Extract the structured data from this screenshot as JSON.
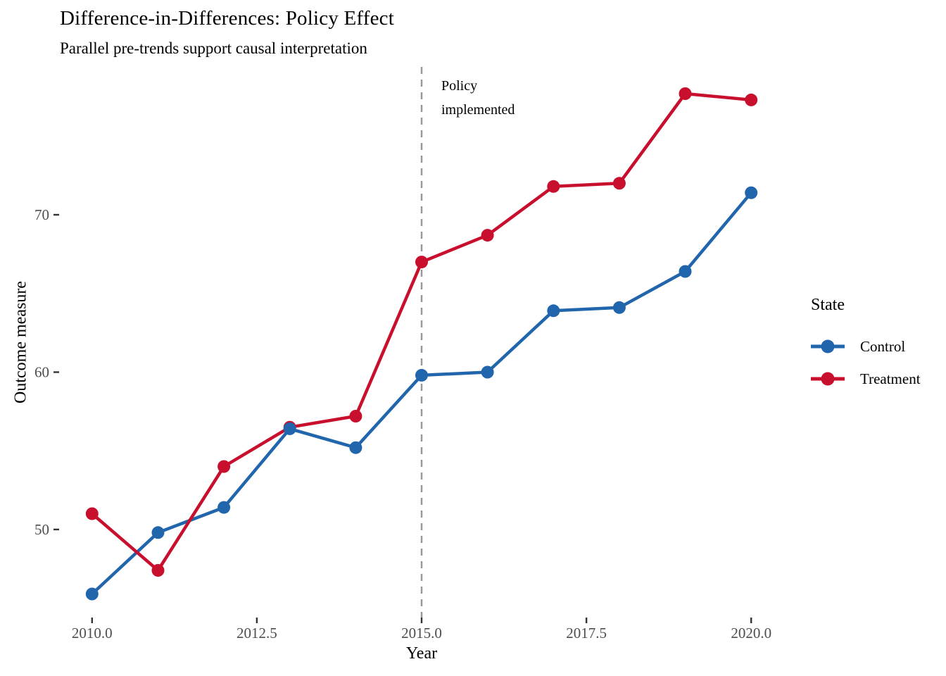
{
  "chart_data": {
    "type": "line",
    "title": "Difference-in-Differences: Policy Effect",
    "subtitle": "Parallel pre-trends support causal interpretation",
    "xlabel": "Year",
    "ylabel": "Outcome measure",
    "x": [
      2010,
      2011,
      2012,
      2013,
      2014,
      2015,
      2016,
      2017,
      2018,
      2019,
      2020
    ],
    "series": [
      {
        "name": "Control",
        "color": "#2166AC",
        "values": [
          45.9,
          49.8,
          51.4,
          56.4,
          55.2,
          59.8,
          60.0,
          63.9,
          64.1,
          66.4,
          71.4
        ]
      },
      {
        "name": "Treatment",
        "color": "#C8102E",
        "values": [
          51.0,
          47.4,
          54.0,
          56.5,
          57.2,
          67.0,
          68.7,
          71.8,
          72.0,
          77.7,
          77.3
        ]
      }
    ],
    "xlim": [
      2009.5,
      2020.5
    ],
    "ylim": [
      44.4,
      79.4
    ],
    "x_tick_values": [
      2010.0,
      2012.5,
      2015.0,
      2017.5,
      2020.0
    ],
    "x_tick_labels": [
      "2010.0",
      "2012.5",
      "2015.0",
      "2017.5",
      "2020.0"
    ],
    "y_tick_values": [
      50,
      60,
      70
    ],
    "y_tick_labels": [
      "50",
      "60",
      "70"
    ],
    "grid": false,
    "vline": {
      "x": 2015,
      "color": "#999999",
      "style": "dashed"
    },
    "annotation": {
      "lines": [
        "Policy",
        "implemented"
      ],
      "anchor_x": 2015.3,
      "position": "top-right-of-vline"
    },
    "legend": {
      "title": "State",
      "position": "right",
      "entries": [
        {
          "label": "Control",
          "color": "#2166AC"
        },
        {
          "label": "Treatment",
          "color": "#C8102E"
        }
      ]
    },
    "style": {
      "tick_label_color": "#4d4d4d",
      "tick_mark_color": "#333333",
      "line_width": 4.5,
      "point_radius": 9
    }
  }
}
